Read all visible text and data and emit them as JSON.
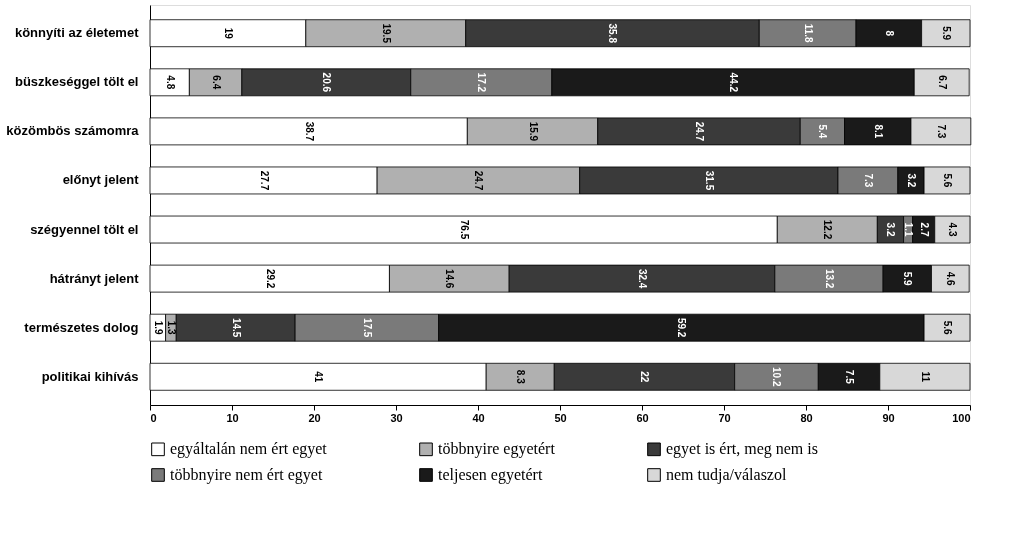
{
  "chart_data": {
    "type": "bar",
    "orientation": "horizontal",
    "stacked": true,
    "data_labels": true,
    "grid": false,
    "legend": "bottom",
    "categories": [
      "könnyíti az életemet",
      "büszkeséggel tölt el",
      "közömbös számomra",
      "előnyt jelent",
      "szégyennel tölt el",
      "hátrányt jelent",
      "természetes dolog",
      "politikai kihívás"
    ],
    "xlim": [
      0,
      100
    ],
    "xticks": [
      0,
      10,
      20,
      30,
      40,
      50,
      60,
      70,
      80,
      90,
      100
    ],
    "series": [
      {
        "name": "egyáltalán nem ért egyet",
        "color": "#ffffff",
        "values": [
          19,
          4.8,
          38.7,
          27.7,
          76.5,
          29.2,
          1.9,
          41
        ]
      },
      {
        "name": "többnyire egyetért",
        "color": "#b0b0b0",
        "values": [
          19.5,
          6.4,
          15.9,
          24.7,
          12.2,
          14.6,
          1.3,
          8.3
        ]
      },
      {
        "name": "egyet is ért, meg nem is",
        "color": "#3a3a3a",
        "values": [
          35.8,
          20.6,
          24.7,
          31.5,
          3.2,
          32.4,
          14.5,
          22
        ]
      },
      {
        "name": "többnyire nem ért egyet",
        "color": "#7a7a7a",
        "values": [
          11.8,
          17.2,
          5.4,
          7.3,
          1.1,
          13.2,
          17.5,
          10.2
        ]
      },
      {
        "name": "teljesen egyetért",
        "color": "#1a1a1a",
        "values": [
          8,
          44.2,
          8.1,
          3.2,
          2.7,
          5.9,
          59.2,
          7.5
        ]
      },
      {
        "name": "nem tudja/válaszol",
        "color": "#d8d8d8",
        "values": [
          5.9,
          6.7,
          7.3,
          5.6,
          4.3,
          4.6,
          5.6,
          11
        ]
      }
    ]
  }
}
